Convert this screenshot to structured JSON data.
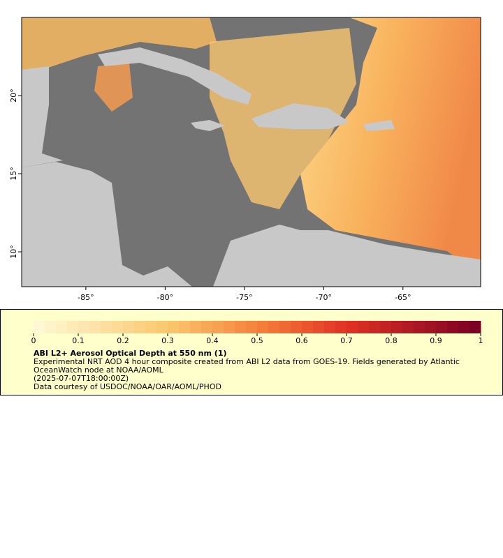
{
  "map": {
    "xlim": [
      -89.05,
      -60.1
    ],
    "ylim": [
      7.77,
      25
    ],
    "xticks": [
      {
        "value": -85,
        "label": "-85°"
      },
      {
        "value": -80,
        "label": "-80°"
      },
      {
        "value": -75,
        "label": "-75°"
      },
      {
        "value": -70,
        "label": "-70°"
      },
      {
        "value": -65,
        "label": "-65°"
      }
    ],
    "yticks": [
      {
        "value": 10,
        "label": "10°"
      },
      {
        "value": 15,
        "label": "15°"
      },
      {
        "value": 20,
        "label": "20°"
      }
    ]
  },
  "legend": {
    "title": "ABI L2+ Aerosol Optical Depth at 550 nm (1)",
    "lines": [
      "Experimental NRT AOD 4 hour composite created from ABI L2 data from GOES-19. Fields generated by Atlantic",
      "OceanWatch node at NOAA/AOML",
      "(2025-07-07T18:00:00Z)",
      "Data courtesy of USDOC/NOAA/OAR/AOML/PHOD"
    ],
    "ticks": [
      0,
      0.1,
      0.2,
      0.3,
      0.4,
      0.5,
      0.6,
      0.7,
      0.8,
      0.9,
      1
    ]
  }
}
